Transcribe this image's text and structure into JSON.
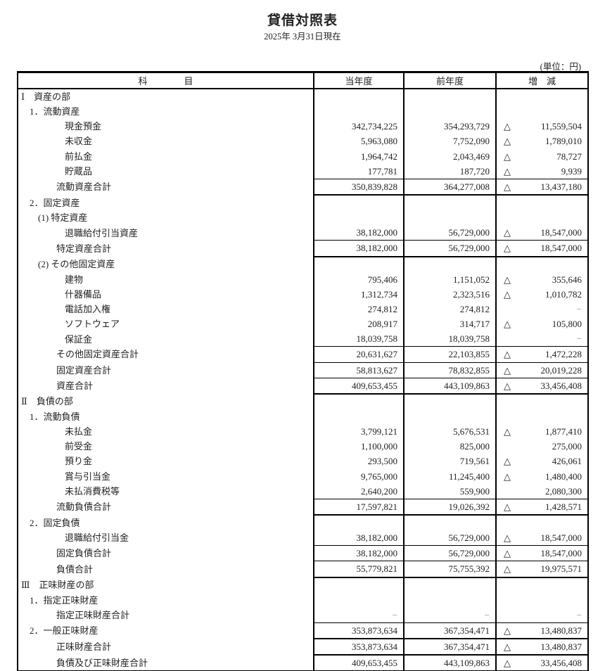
{
  "title": "貸借対照表",
  "date": "2025年 3月31日現在",
  "unit": "(単位：円)",
  "headers": [
    "科　　　　目",
    "当年度",
    "前年度",
    "増　減"
  ],
  "triangle": "△",
  "rows": [
    {
      "label": "Ⅰ　資産の部",
      "level": 0
    },
    {
      "label": "1．流動資産",
      "level": 1
    },
    {
      "label": "現金預金",
      "level": 4,
      "cur": "342,734,225",
      "prev": "354,293,729",
      "neg": true,
      "diff": "11,559,504"
    },
    {
      "label": "未収金",
      "level": 4,
      "cur": "5,963,080",
      "prev": "7,752,090",
      "neg": true,
      "diff": "1,789,010"
    },
    {
      "label": "前払金",
      "level": 4,
      "cur": "1,964,742",
      "prev": "2,043,469",
      "neg": true,
      "diff": "78,727"
    },
    {
      "label": "貯蔵品",
      "level": 4,
      "cur": "177,781",
      "prev": "187,720",
      "neg": true,
      "diff": "9,939"
    },
    {
      "label": "流動資産合計",
      "level": 3,
      "cur": "350,839,828",
      "prev": "364,277,008",
      "neg": true,
      "diff": "13,437,180"
    },
    {
      "label": "2．固定資産",
      "level": 1
    },
    {
      "label": "(1) 特定資産",
      "level": 2
    },
    {
      "label": "退職給付引当資産",
      "level": 4,
      "cur": "38,182,000",
      "prev": "56,729,000",
      "neg": true,
      "diff": "18,547,000"
    },
    {
      "label": "特定資産合計",
      "level": 3,
      "cur": "38,182,000",
      "prev": "56,729,000",
      "neg": true,
      "diff": "18,547,000"
    },
    {
      "label": "(2) その他固定資産",
      "level": 2
    },
    {
      "label": "建物",
      "level": 4,
      "cur": "795,406",
      "prev": "1,151,052",
      "neg": true,
      "diff": "355,646"
    },
    {
      "label": "什器備品",
      "level": 4,
      "cur": "1,312,734",
      "prev": "2,323,516",
      "neg": true,
      "diff": "1,010,782"
    },
    {
      "label": "電話加入権",
      "level": 4,
      "cur": "274,812",
      "prev": "274,812",
      "neg": false,
      "diff": "−"
    },
    {
      "label": "ソフトウェア",
      "level": 4,
      "cur": "208,917",
      "prev": "314,717",
      "neg": true,
      "diff": "105,800"
    },
    {
      "label": "保証金",
      "level": 4,
      "cur": "18,039,758",
      "prev": "18,039,758",
      "neg": false,
      "diff": "−"
    },
    {
      "label": "その他固定資産合計",
      "level": 3,
      "cur": "20,631,627",
      "prev": "22,103,855",
      "neg": true,
      "diff": "1,472,228"
    },
    {
      "label": "固定資産合計",
      "level": 3,
      "cur": "58,813,627",
      "prev": "78,832,855",
      "neg": true,
      "diff": "20,019,228"
    },
    {
      "label": "資産合計",
      "level": 3,
      "cur": "409,653,455",
      "prev": "443,109,863",
      "neg": true,
      "diff": "33,456,408"
    },
    {
      "label": "Ⅱ　負債の部",
      "level": 0
    },
    {
      "label": "1．流動負債",
      "level": 1
    },
    {
      "label": "未払金",
      "level": 4,
      "cur": "3,799,121",
      "prev": "5,676,531",
      "neg": true,
      "diff": "1,877,410"
    },
    {
      "label": "前受金",
      "level": 4,
      "cur": "1,100,000",
      "prev": "825,000",
      "neg": false,
      "diff": "275,000"
    },
    {
      "label": "預り金",
      "level": 4,
      "cur": "293,500",
      "prev": "719,561",
      "neg": true,
      "diff": "426,061"
    },
    {
      "label": "賞与引当金",
      "level": 4,
      "cur": "9,765,000",
      "prev": "11,245,400",
      "neg": true,
      "diff": "1,480,400"
    },
    {
      "label": "未払消費税等",
      "level": 4,
      "cur": "2,640,200",
      "prev": "559,900",
      "neg": false,
      "diff": "2,080,300"
    },
    {
      "label": "流動負債合計",
      "level": 3,
      "cur": "17,597,821",
      "prev": "19,026,392",
      "neg": true,
      "diff": "1,428,571"
    },
    {
      "label": "2．固定負債",
      "level": 1
    },
    {
      "label": "退職給付引当金",
      "level": 4,
      "cur": "38,182,000",
      "prev": "56,729,000",
      "neg": true,
      "diff": "18,547,000"
    },
    {
      "label": "固定負債合計",
      "level": 3,
      "cur": "38,182,000",
      "prev": "56,729,000",
      "neg": true,
      "diff": "18,547,000"
    },
    {
      "label": "負債合計",
      "level": 3,
      "cur": "55,779,821",
      "prev": "75,755,392",
      "neg": true,
      "diff": "19,975,571"
    },
    {
      "label": "Ⅲ　正味財産の部",
      "level": 0
    },
    {
      "label": "1．指定正味財産",
      "level": 1
    },
    {
      "label": "指定正味財産合計",
      "level": 3,
      "cur": "−",
      "prev": "−",
      "neg": false,
      "diff": "−"
    },
    {
      "label": "2．一般正味財産",
      "level": 1,
      "cur": "353,873,634",
      "prev": "367,354,471",
      "neg": true,
      "diff": "13,480,837"
    },
    {
      "label": "正味財産合計",
      "level": 3,
      "cur": "353,873,634",
      "prev": "367,354,471",
      "neg": true,
      "diff": "13,480,837"
    },
    {
      "label": "負債及び正味財産合計",
      "level": 3,
      "cur": "409,653,455",
      "prev": "443,109,863",
      "neg": true,
      "diff": "33,456,408"
    }
  ]
}
